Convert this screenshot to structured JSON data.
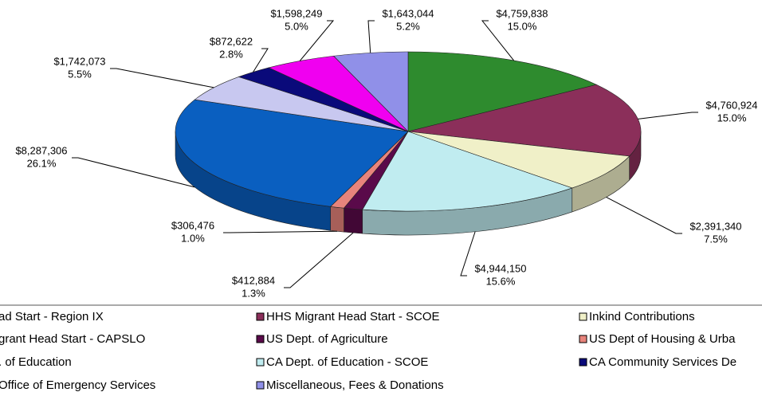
{
  "chart_data": {
    "type": "pie",
    "categories": [
      "ad Start - Region IX",
      "HHS Migrant Head Start - SCOE",
      "Inkind Contributions",
      "CA Dept. of Education - SCOE",
      "US Dept. of Agriculture",
      "US Dept of Housing & Urba",
      "grant Head Start - CAPSLO",
      ". of Education",
      "CA Community Services De",
      " Office of Emergency Services",
      "Miscellaneous, Fees & Donations"
    ],
    "values": [
      4759838,
      4760924,
      2391340,
      4944150,
      412884,
      306476,
      8287306,
      1742073,
      872622,
      1598249,
      1643044
    ],
    "value_labels": [
      "$4,759,838",
      "$4,760,924",
      "$2,391,340",
      "$4,944,150",
      "$412,884",
      "$306,476",
      "$8,287,306",
      "$1,742,073",
      "$872,622",
      "$1,598,249",
      "$1,643,044"
    ],
    "shares": [
      15.0,
      15.0,
      7.5,
      15.6,
      1.3,
      1.0,
      26.1,
      5.5,
      2.8,
      5.0,
      5.2
    ],
    "share_labels": [
      "15.0%",
      "15.0%",
      "7.5%",
      "15.6%",
      "1.3%",
      "1.0%",
      "26.1%",
      "5.5%",
      "2.8%",
      "5.0%",
      "5.2%"
    ],
    "colors": [
      "#2e8b2e",
      "#8b2f5a",
      "#f0f0c8",
      "#c0ecf0",
      "#5a0a4a",
      "#e8847c",
      "#0a5fc0",
      "#c8c8f0",
      "#0a0a7a",
      "#f000f0",
      "#9090e8"
    ]
  }
}
